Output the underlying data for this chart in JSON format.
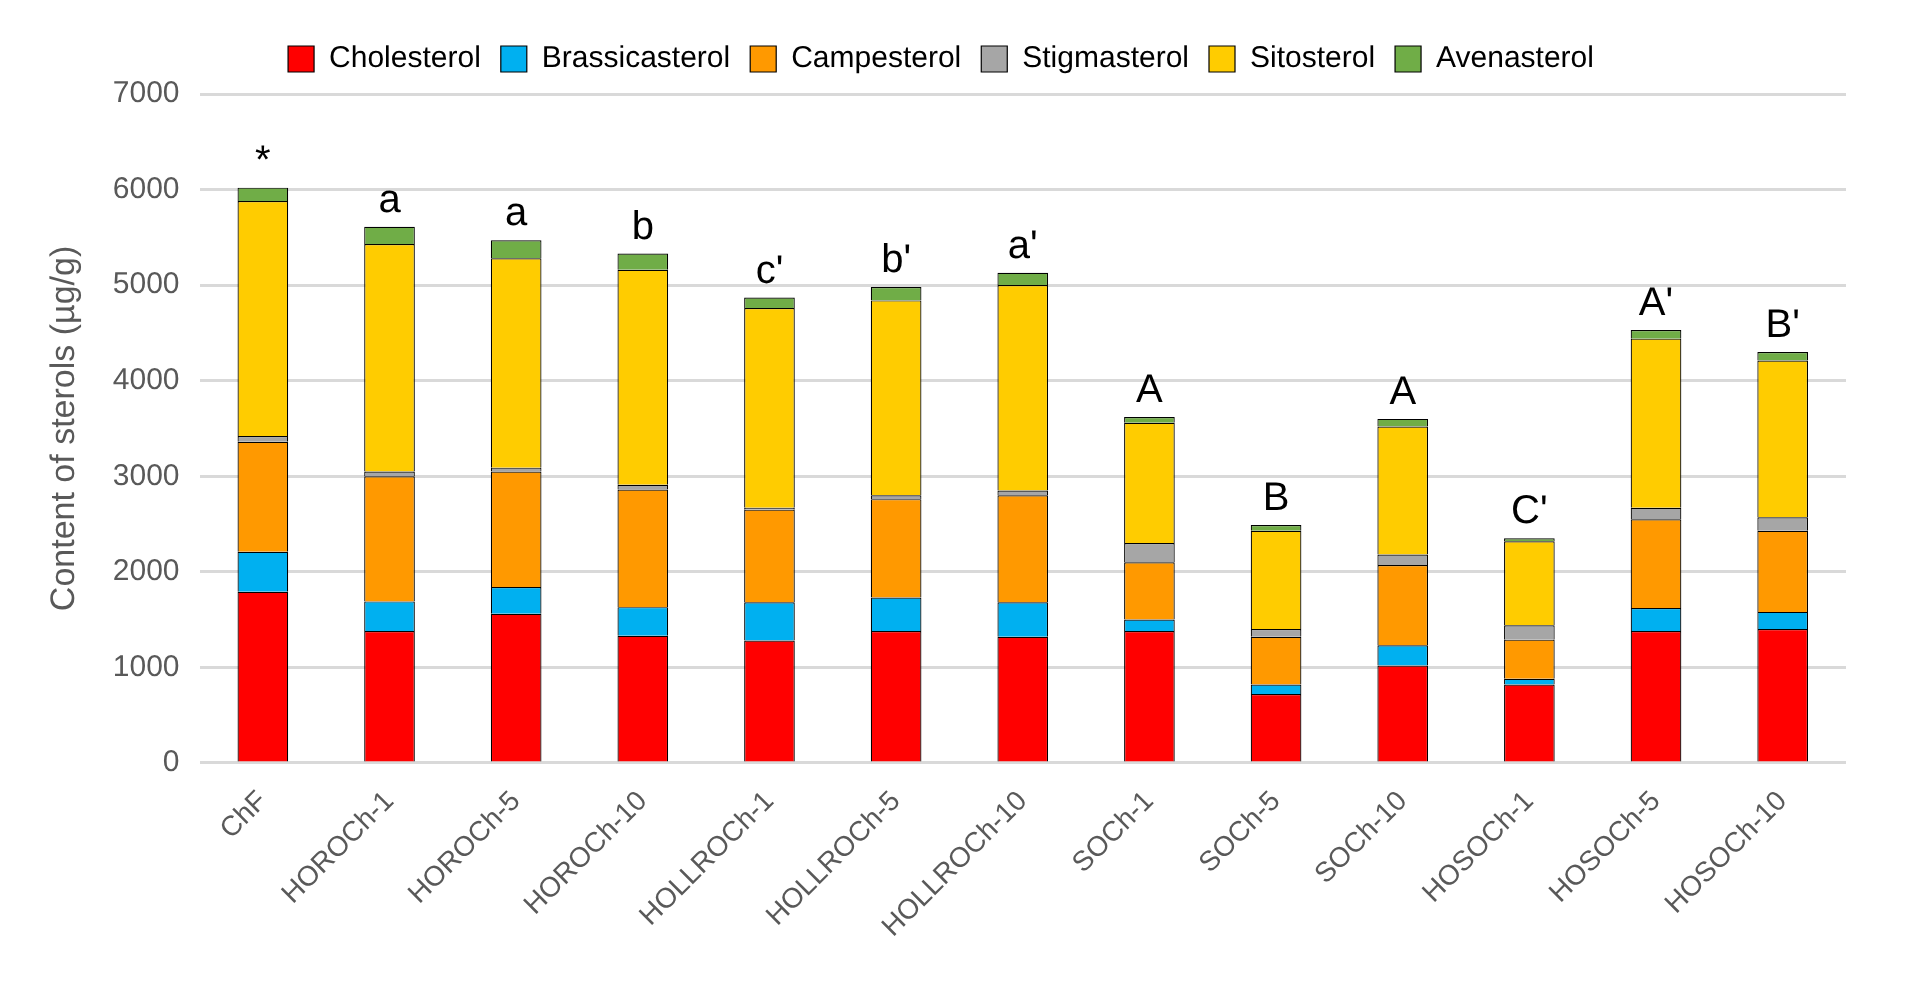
{
  "chart_data": {
    "type": "bar",
    "stacked": true,
    "ylabel": "Content of sterols (µg/g)",
    "categories": [
      "ChF",
      "HOROCh-1",
      "HOROCh-5",
      "HOROCh-10",
      "HOLLROCh-1",
      "HOLLROCh-5",
      "HOLLROCh-10",
      "SOCh-1",
      "SOCh-5",
      "SOCh-10",
      "HOSOCh-1",
      "HOSOCh-5",
      "HOSOCh-10"
    ],
    "series": [
      {
        "name": "Cholesterol",
        "color": "#ff0000",
        "values": [
          1790,
          1380,
          1560,
          1330,
          1280,
          1380,
          1320,
          1380,
          720,
          1020,
          820,
          1380,
          1400
        ]
      },
      {
        "name": "Brassicasterol",
        "color": "#00b0f0",
        "values": [
          420,
          310,
          280,
          300,
          400,
          350,
          360,
          120,
          100,
          210,
          60,
          240,
          180
        ]
      },
      {
        "name": "Campesterol",
        "color": "#ff9900",
        "values": [
          1150,
          1310,
          1210,
          1230,
          970,
          1030,
          1120,
          600,
          500,
          840,
          410,
          930,
          850
        ]
      },
      {
        "name": "Stigmasterol",
        "color": "#a6a6a6",
        "values": [
          60,
          50,
          40,
          50,
          20,
          40,
          50,
          200,
          80,
          110,
          150,
          120,
          140
        ]
      },
      {
        "name": "Sitosterol",
        "color": "#ffcc00",
        "values": [
          2460,
          2380,
          2190,
          2250,
          2090,
          2040,
          2150,
          1260,
          1030,
          1340,
          880,
          1770,
          1640
        ]
      },
      {
        "name": "Avenasterol",
        "color": "#70ad47",
        "values": [
          140,
          180,
          190,
          170,
          110,
          140,
          130,
          60,
          60,
          80,
          30,
          90,
          90
        ]
      }
    ],
    "ylim": [
      0,
      7000
    ],
    "yticks": [
      0,
      1000,
      2000,
      3000,
      4000,
      5000,
      6000,
      7000
    ],
    "grid": "y",
    "legend": "top",
    "annotations": [
      {
        "text": "*",
        "x": "ChF",
        "y": 6020
      },
      {
        "text": "a",
        "x": "HOROCh-1",
        "y": 5610
      },
      {
        "text": "a",
        "x": "HOROCh-5",
        "y": 5470
      },
      {
        "text": "b",
        "x": "HOROCh-10",
        "y": 5330
      },
      {
        "text": "c'",
        "x": "HOLLROCh-1",
        "y": 4870
      },
      {
        "text": "b'",
        "x": "HOLLROCh-5",
        "y": 4980
      },
      {
        "text": "a'",
        "x": "HOLLROCh-10",
        "y": 5130
      },
      {
        "text": "A",
        "x": "SOCh-1",
        "y": 3620
      },
      {
        "text": "B",
        "x": "SOCh-5",
        "y": 2490
      },
      {
        "text": "A",
        "x": "SOCh-10",
        "y": 3600
      },
      {
        "text": "C'",
        "x": "HOSOCh-1",
        "y": 2350
      },
      {
        "text": "A'",
        "x": "HOSOCh-5",
        "y": 4530
      },
      {
        "text": "B'",
        "x": "HOSOCh-10",
        "y": 4300
      }
    ]
  }
}
